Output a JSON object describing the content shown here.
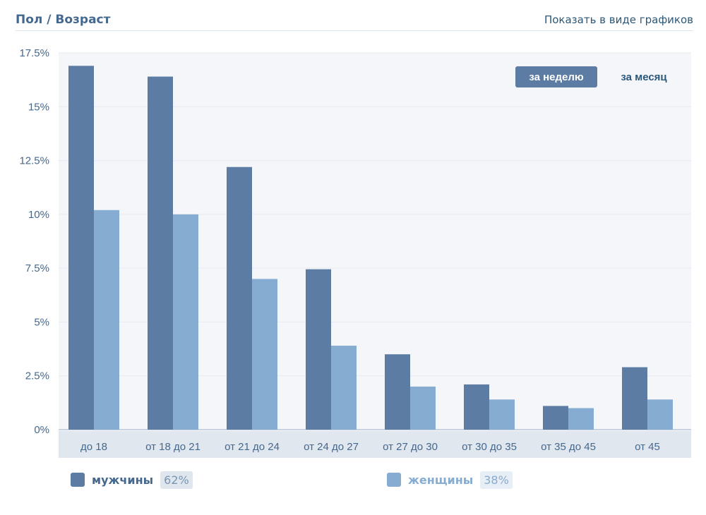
{
  "header": {
    "title": "Пол / Возраст",
    "toggle_link": "Показать в виде графиков"
  },
  "period": {
    "week_label": "за неделю",
    "month_label": "за месяц",
    "selected": "week"
  },
  "colors": {
    "men": "#5c7ca4",
    "women": "#87acd1",
    "plot_bg": "#f4f6f9",
    "axis_text": "#45688e",
    "grid": "#e6ebf0",
    "xaxis_bg": "#e1e7ee"
  },
  "chart_data": {
    "type": "bar",
    "categories": [
      "до 18",
      "от 18 до 21",
      "от 21 до 24",
      "от 24 до 27",
      "от 27 до 30",
      "от 30 до 35",
      "от 35 до 45",
      "от 45"
    ],
    "series": [
      {
        "name": "мужчины",
        "values": [
          16.9,
          16.4,
          12.2,
          7.45,
          3.5,
          2.1,
          1.1,
          2.9
        ]
      },
      {
        "name": "женщины",
        "values": [
          10.2,
          10.0,
          7.0,
          3.9,
          2.0,
          1.4,
          1.0,
          1.4
        ]
      }
    ],
    "ylim": [
      0,
      17.5
    ],
    "yticks": [
      "0%",
      "2.5%",
      "5%",
      "7.5%",
      "10%",
      "12.5%",
      "15%",
      "17.5%"
    ],
    "ytick_values": [
      0,
      2.5,
      5,
      7.5,
      10,
      12.5,
      15,
      17.5
    ],
    "grid": true,
    "legend_position": "bottom"
  },
  "legend": {
    "men": {
      "label": "мужчины",
      "percent": "62%"
    },
    "women": {
      "label": "женщины",
      "percent": "38%"
    }
  }
}
